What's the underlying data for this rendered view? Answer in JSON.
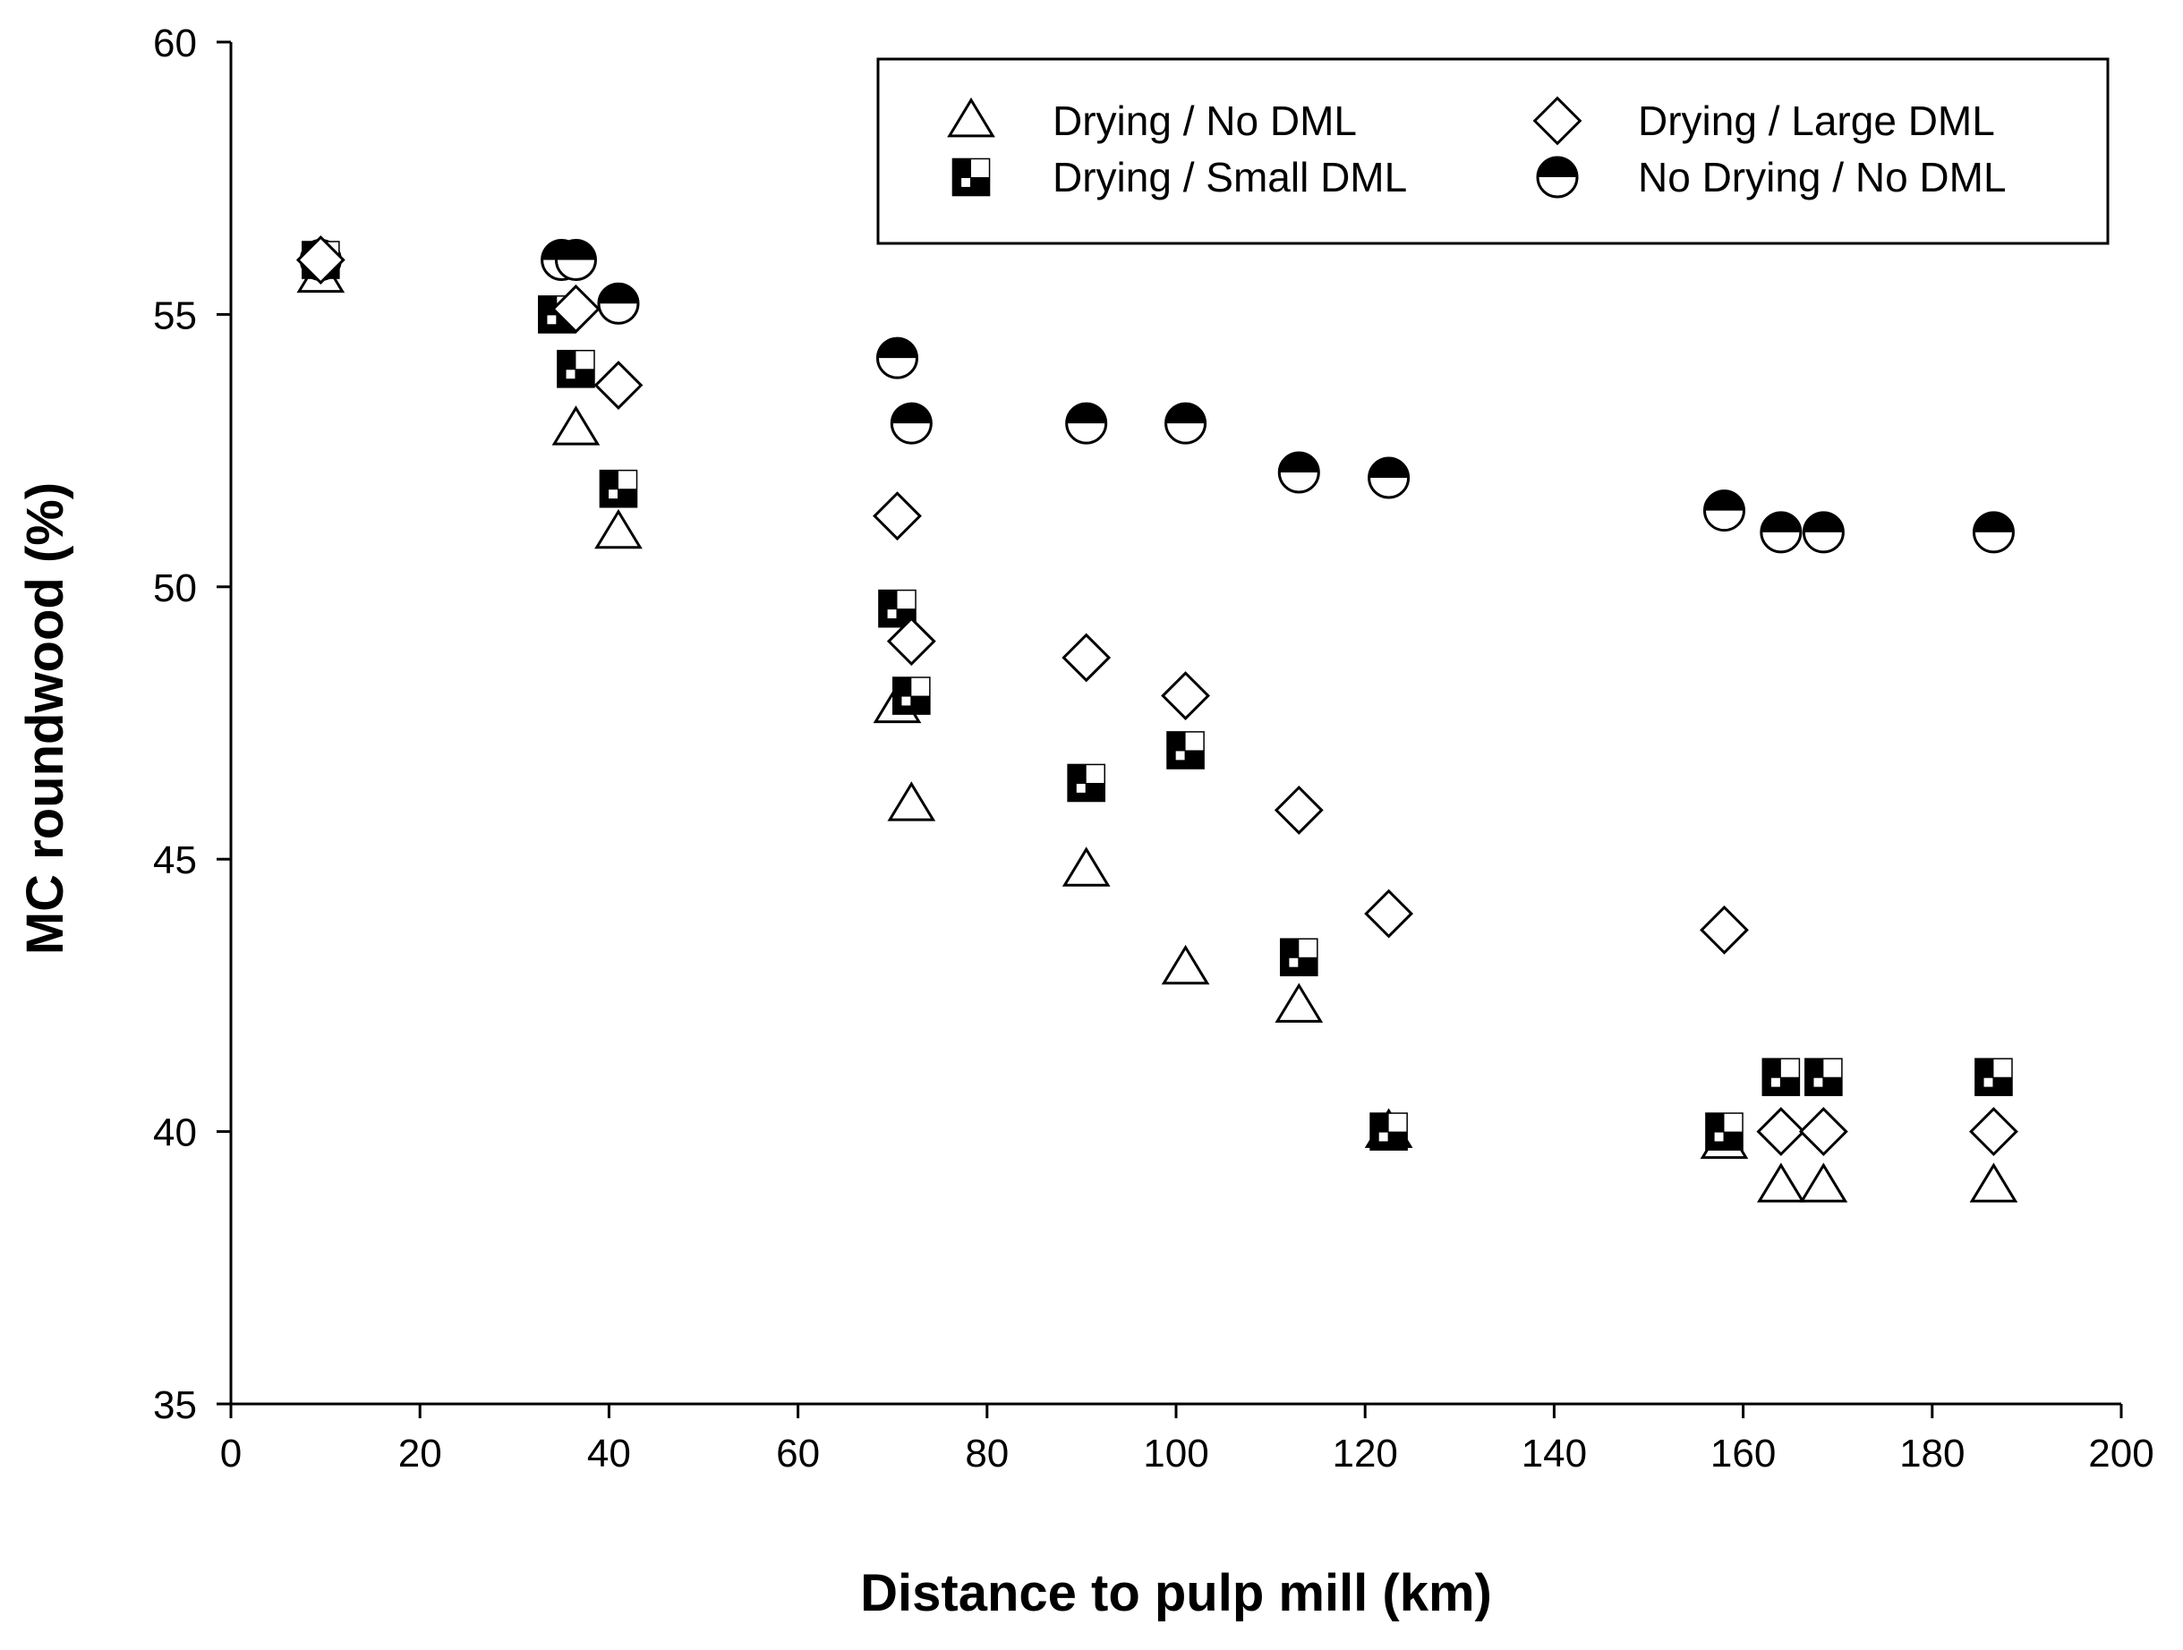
{
  "chart_data": {
    "type": "scatter",
    "title": "",
    "xlabel": "Distance to pulp mill (km)",
    "ylabel": "MC roundwood (%)",
    "xlim": [
      0,
      200
    ],
    "ylim": [
      35,
      60
    ],
    "xticks": [
      0,
      20,
      40,
      60,
      80,
      100,
      120,
      140,
      160,
      180,
      200
    ],
    "yticks": [
      35,
      40,
      45,
      50,
      55,
      60
    ],
    "grid": false,
    "legend_position": "top-right",
    "series": [
      {
        "name": "Drying / No DML",
        "marker": "triangle-open",
        "x": [
          9.5,
          36.5,
          41,
          70.5,
          72,
          90.5,
          101,
          113,
          122.5,
          158,
          164,
          168.5,
          186.5
        ],
        "y": [
          55.7,
          52.9,
          51,
          47.8,
          46,
          44.8,
          43,
          42.3,
          40,
          39.8,
          39,
          39,
          39
        ]
      },
      {
        "name": "Drying / Small DML",
        "marker": "square-checker",
        "x": [
          9.5,
          34.5,
          36.5,
          41,
          70.5,
          72,
          90.5,
          101,
          113,
          122.5,
          158,
          164,
          168.5,
          186.5
        ],
        "y": [
          56,
          55,
          54,
          51.8,
          49.6,
          48,
          46.4,
          47,
          43.2,
          40,
          40,
          41,
          41,
          41
        ]
      },
      {
        "name": "Drying / Large DML",
        "marker": "diamond-open",
        "x": [
          9.5,
          36.5,
          41,
          70.5,
          72,
          90.5,
          101,
          113,
          122.5,
          158,
          164,
          168.5,
          186.5
        ],
        "y": [
          56,
          55.1,
          53.7,
          51.3,
          49,
          48.7,
          48,
          45.9,
          44,
          43.7,
          40,
          40,
          40
        ]
      },
      {
        "name": "No Drying / No DML",
        "marker": "circle-half-top",
        "x": [
          9.5,
          35,
          36.5,
          41,
          70.5,
          72,
          90.5,
          101,
          113,
          122.5,
          158,
          164,
          168.5,
          186.5
        ],
        "y": [
          56,
          56,
          56,
          55.2,
          54.2,
          53,
          53,
          53,
          52.1,
          52,
          51.4,
          51,
          51,
          51
        ]
      }
    ]
  }
}
